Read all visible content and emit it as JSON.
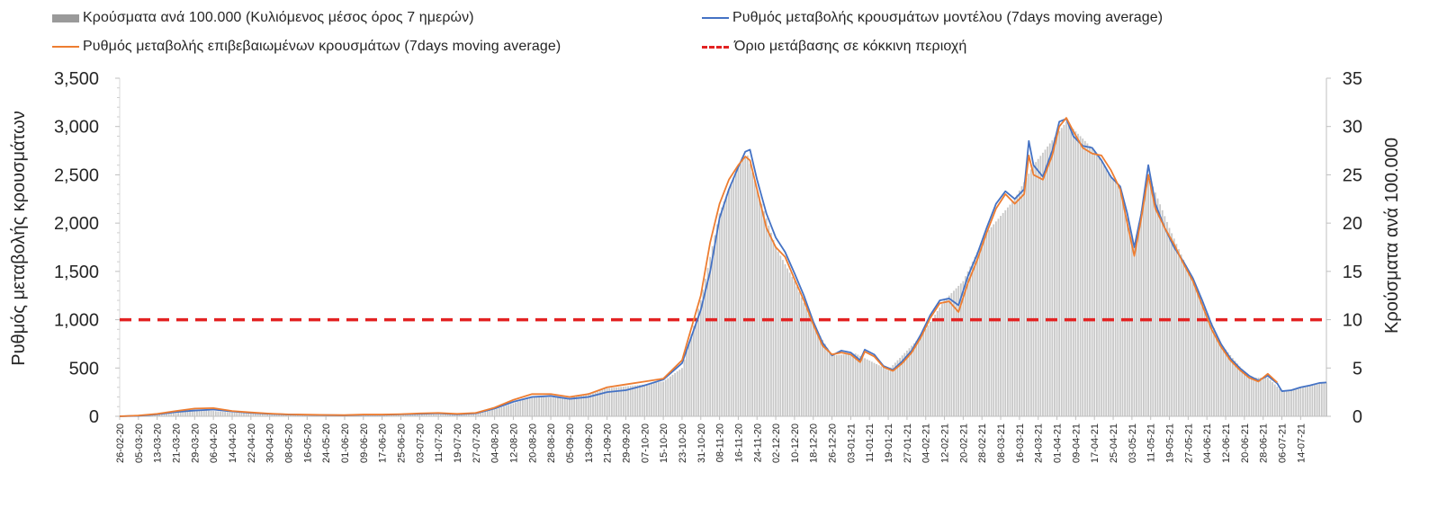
{
  "chart_data": {
    "type": "bar+line",
    "title": "",
    "ylabel_left": "Ρυθμός μεταβολής κρουσμάτων",
    "ylabel_right": "Κρούσματα ανά 100.000",
    "ylim_left": [
      0,
      3500
    ],
    "ylim_right": [
      0,
      35
    ],
    "yticks_left": [
      "0",
      "500",
      "1,000",
      "1,500",
      "2,000",
      "2,500",
      "3,000",
      "3,500"
    ],
    "yticks_right": [
      "0",
      "5",
      "10",
      "15",
      "20",
      "25",
      "30",
      "35"
    ],
    "x_range": [
      "2020-02-26",
      "2021-07-25"
    ],
    "x_tick_labels": [
      "26-02-20",
      "05-03-20",
      "13-03-20",
      "21-03-20",
      "29-03-20",
      "06-04-20",
      "14-04-20",
      "22-04-20",
      "30-04-20",
      "08-05-20",
      "16-05-20",
      "24-05-20",
      "01-06-20",
      "09-06-20",
      "17-06-20",
      "25-06-20",
      "03-07-20",
      "11-07-20",
      "19-07-20",
      "27-07-20",
      "04-08-20",
      "12-08-20",
      "20-08-20",
      "28-08-20",
      "05-09-20",
      "13-09-20",
      "21-09-20",
      "29-09-20",
      "07-10-20",
      "15-10-20",
      "23-10-20",
      "31-10-20",
      "08-11-20",
      "16-11-20",
      "24-11-20",
      "02-12-20",
      "10-12-20",
      "18-12-20",
      "26-12-20",
      "03-01-21",
      "11-01-21",
      "19-01-21",
      "27-01-21",
      "04-02-21",
      "12-02-21",
      "20-02-21",
      "28-02-21",
      "08-03-21",
      "16-03-21",
      "24-03-21",
      "01-04-21",
      "09-04-21",
      "17-04-21",
      "25-04-21",
      "03-05-21",
      "11-05-21",
      "19-05-21",
      "27-05-21",
      "04-06-21",
      "12-06-21",
      "20-06-21",
      "28-06-21",
      "06-07-21",
      "14-07-21"
    ],
    "legend": [
      {
        "label": "Κρούσματα ανά 100.000 (Κυλιόμενος μέσος όρος 7 ημερών)",
        "kind": "bar",
        "color": "#9a9a9a"
      },
      {
        "label": "Ρυθμός μεταβολής κρουσμάτων μοντέλου (7days moving average)",
        "kind": "line",
        "color": "#4472c4"
      },
      {
        "label": "Ρυθμός μεταβολής επιβεβαιωμένων κρουσμάτων (7days moving average)",
        "kind": "line",
        "color": "#ed7d31"
      },
      {
        "label": "Όριο μετάβασης σε κόκκινη περιοχή",
        "kind": "dashed",
        "color": "#e32222"
      }
    ],
    "threshold": {
      "y": 1000,
      "color": "#e32222"
    },
    "series": [
      {
        "name": "Ρυθμός μεταβολής κρουσμάτων μοντέλου (7days moving average)",
        "color": "#4472c4",
        "axis": "left",
        "points": [
          [
            "2020-02-26",
            0
          ],
          [
            "2020-03-05",
            5
          ],
          [
            "2020-03-13",
            20
          ],
          [
            "2020-03-21",
            45
          ],
          [
            "2020-03-29",
            60
          ],
          [
            "2020-04-06",
            70
          ],
          [
            "2020-04-14",
            50
          ],
          [
            "2020-04-22",
            35
          ],
          [
            "2020-04-30",
            25
          ],
          [
            "2020-05-08",
            18
          ],
          [
            "2020-05-16",
            15
          ],
          [
            "2020-05-24",
            12
          ],
          [
            "2020-06-01",
            10
          ],
          [
            "2020-06-09",
            15
          ],
          [
            "2020-06-17",
            15
          ],
          [
            "2020-06-25",
            20
          ],
          [
            "2020-07-03",
            25
          ],
          [
            "2020-07-11",
            30
          ],
          [
            "2020-07-19",
            20
          ],
          [
            "2020-07-27",
            30
          ],
          [
            "2020-08-04",
            80
          ],
          [
            "2020-08-12",
            150
          ],
          [
            "2020-08-20",
            200
          ],
          [
            "2020-08-28",
            210
          ],
          [
            "2020-09-05",
            180
          ],
          [
            "2020-09-13",
            200
          ],
          [
            "2020-09-21",
            250
          ],
          [
            "2020-09-29",
            270
          ],
          [
            "2020-10-07",
            320
          ],
          [
            "2020-10-15",
            380
          ],
          [
            "2020-10-23",
            550
          ],
          [
            "2020-10-31",
            1100
          ],
          [
            "2020-11-04",
            1500
          ],
          [
            "2020-11-08",
            2050
          ],
          [
            "2020-11-12",
            2350
          ],
          [
            "2020-11-16",
            2580
          ],
          [
            "2020-11-19",
            2740
          ],
          [
            "2020-11-21",
            2760
          ],
          [
            "2020-11-24",
            2450
          ],
          [
            "2020-11-28",
            2100
          ],
          [
            "2020-12-02",
            1850
          ],
          [
            "2020-12-06",
            1700
          ],
          [
            "2020-12-10",
            1480
          ],
          [
            "2020-12-14",
            1250
          ],
          [
            "2020-12-18",
            980
          ],
          [
            "2020-12-22",
            760
          ],
          [
            "2020-12-26",
            630
          ],
          [
            "2020-12-30",
            680
          ],
          [
            "2021-01-03",
            660
          ],
          [
            "2021-01-07",
            580
          ],
          [
            "2021-01-09",
            690
          ],
          [
            "2021-01-13",
            640
          ],
          [
            "2021-01-17",
            520
          ],
          [
            "2021-01-21",
            480
          ],
          [
            "2021-01-25",
            570
          ],
          [
            "2021-01-29",
            680
          ],
          [
            "2021-02-02",
            850
          ],
          [
            "2021-02-06",
            1050
          ],
          [
            "2021-02-10",
            1200
          ],
          [
            "2021-02-14",
            1220
          ],
          [
            "2021-02-18",
            1150
          ],
          [
            "2021-02-22",
            1450
          ],
          [
            "2021-02-26",
            1680
          ],
          [
            "2021-03-02",
            1950
          ],
          [
            "2021-03-06",
            2200
          ],
          [
            "2021-03-10",
            2330
          ],
          [
            "2021-03-14",
            2250
          ],
          [
            "2021-03-18",
            2350
          ],
          [
            "2021-03-20",
            2850
          ],
          [
            "2021-03-22",
            2600
          ],
          [
            "2021-03-26",
            2480
          ],
          [
            "2021-03-30",
            2750
          ],
          [
            "2021-04-02",
            3050
          ],
          [
            "2021-04-05",
            3080
          ],
          [
            "2021-04-08",
            2900
          ],
          [
            "2021-04-12",
            2800
          ],
          [
            "2021-04-16",
            2780
          ],
          [
            "2021-04-20",
            2650
          ],
          [
            "2021-04-24",
            2480
          ],
          [
            "2021-04-28",
            2380
          ],
          [
            "2021-05-01",
            2100
          ],
          [
            "2021-05-04",
            1750
          ],
          [
            "2021-05-07",
            2100
          ],
          [
            "2021-05-10",
            2600
          ],
          [
            "2021-05-13",
            2200
          ],
          [
            "2021-05-17",
            1950
          ],
          [
            "2021-05-21",
            1750
          ],
          [
            "2021-05-25",
            1600
          ],
          [
            "2021-05-29",
            1430
          ],
          [
            "2021-06-02",
            1200
          ],
          [
            "2021-06-06",
            950
          ],
          [
            "2021-06-10",
            750
          ],
          [
            "2021-06-14",
            600
          ],
          [
            "2021-06-18",
            500
          ],
          [
            "2021-06-22",
            420
          ],
          [
            "2021-06-26",
            370
          ],
          [
            "2021-06-30",
            420
          ],
          [
            "2021-07-04",
            340
          ],
          [
            "2021-07-06",
            260
          ],
          [
            "2021-07-10",
            270
          ],
          [
            "2021-07-14",
            300
          ],
          [
            "2021-07-18",
            320
          ],
          [
            "2021-07-22",
            345
          ],
          [
            "2021-07-25",
            350
          ]
        ]
      },
      {
        "name": "Ρυθμός μεταβολής επιβεβαιωμένων κρουσμάτων (7days moving average)",
        "color": "#ed7d31",
        "axis": "left",
        "points": [
          [
            "2020-02-26",
            0
          ],
          [
            "2020-03-05",
            8
          ],
          [
            "2020-03-13",
            25
          ],
          [
            "2020-03-21",
            55
          ],
          [
            "2020-03-29",
            80
          ],
          [
            "2020-04-06",
            85
          ],
          [
            "2020-04-14",
            55
          ],
          [
            "2020-04-22",
            40
          ],
          [
            "2020-04-30",
            28
          ],
          [
            "2020-05-08",
            20
          ],
          [
            "2020-05-16",
            17
          ],
          [
            "2020-05-24",
            14
          ],
          [
            "2020-06-01",
            12
          ],
          [
            "2020-06-09",
            18
          ],
          [
            "2020-06-17",
            18
          ],
          [
            "2020-06-25",
            22
          ],
          [
            "2020-07-03",
            30
          ],
          [
            "2020-07-11",
            35
          ],
          [
            "2020-07-19",
            25
          ],
          [
            "2020-07-27",
            35
          ],
          [
            "2020-08-04",
            90
          ],
          [
            "2020-08-12",
            170
          ],
          [
            "2020-08-20",
            230
          ],
          [
            "2020-08-28",
            230
          ],
          [
            "2020-09-05",
            200
          ],
          [
            "2020-09-13",
            230
          ],
          [
            "2020-09-21",
            300
          ],
          [
            "2020-09-29",
            330
          ],
          [
            "2020-10-07",
            360
          ],
          [
            "2020-10-15",
            390
          ],
          [
            "2020-10-23",
            580
          ],
          [
            "2020-10-31",
            1250
          ],
          [
            "2020-11-04",
            1800
          ],
          [
            "2020-11-08",
            2200
          ],
          [
            "2020-11-12",
            2450
          ],
          [
            "2020-11-16",
            2600
          ],
          [
            "2020-11-19",
            2690
          ],
          [
            "2020-11-21",
            2650
          ],
          [
            "2020-11-24",
            2350
          ],
          [
            "2020-11-28",
            1950
          ],
          [
            "2020-12-02",
            1750
          ],
          [
            "2020-12-06",
            1650
          ],
          [
            "2020-12-10",
            1420
          ],
          [
            "2020-12-14",
            1200
          ],
          [
            "2020-12-18",
            950
          ],
          [
            "2020-12-22",
            730
          ],
          [
            "2020-12-26",
            640
          ],
          [
            "2020-12-30",
            660
          ],
          [
            "2021-01-03",
            640
          ],
          [
            "2021-01-07",
            560
          ],
          [
            "2021-01-09",
            670
          ],
          [
            "2021-01-13",
            620
          ],
          [
            "2021-01-17",
            510
          ],
          [
            "2021-01-21",
            470
          ],
          [
            "2021-01-25",
            550
          ],
          [
            "2021-01-29",
            660
          ],
          [
            "2021-02-02",
            820
          ],
          [
            "2021-02-06",
            1020
          ],
          [
            "2021-02-10",
            1170
          ],
          [
            "2021-02-14",
            1190
          ],
          [
            "2021-02-18",
            1080
          ],
          [
            "2021-02-22",
            1380
          ],
          [
            "2021-02-26",
            1620
          ],
          [
            "2021-03-02",
            1900
          ],
          [
            "2021-03-06",
            2150
          ],
          [
            "2021-03-10",
            2300
          ],
          [
            "2021-03-14",
            2200
          ],
          [
            "2021-03-18",
            2300
          ],
          [
            "2021-03-20",
            2700
          ],
          [
            "2021-03-22",
            2500
          ],
          [
            "2021-03-26",
            2450
          ],
          [
            "2021-03-30",
            2700
          ],
          [
            "2021-04-02",
            3000
          ],
          [
            "2021-04-05",
            3090
          ],
          [
            "2021-04-08",
            2950
          ],
          [
            "2021-04-12",
            2780
          ],
          [
            "2021-04-16",
            2720
          ],
          [
            "2021-04-20",
            2700
          ],
          [
            "2021-04-24",
            2550
          ],
          [
            "2021-04-28",
            2350
          ],
          [
            "2021-05-01",
            2000
          ],
          [
            "2021-05-04",
            1660
          ],
          [
            "2021-05-07",
            2050
          ],
          [
            "2021-05-10",
            2500
          ],
          [
            "2021-05-13",
            2150
          ],
          [
            "2021-05-17",
            1950
          ],
          [
            "2021-05-21",
            1780
          ],
          [
            "2021-05-25",
            1580
          ],
          [
            "2021-05-29",
            1400
          ],
          [
            "2021-06-02",
            1150
          ],
          [
            "2021-06-06",
            900
          ],
          [
            "2021-06-10",
            720
          ],
          [
            "2021-06-14",
            580
          ],
          [
            "2021-06-18",
            480
          ],
          [
            "2021-06-22",
            400
          ],
          [
            "2021-06-26",
            360
          ],
          [
            "2021-06-30",
            440
          ],
          [
            "2021-07-04",
            350
          ]
        ]
      },
      {
        "name": "Κρούσματα ανά 100.000 (Κυλιόμενος μέσος όρος 7 ημερών)",
        "color": "#9a9a9a",
        "axis": "right",
        "type": "bar",
        "points": [
          [
            "2020-02-26",
            0
          ],
          [
            "2020-03-13",
            0.3
          ],
          [
            "2020-03-29",
            0.7
          ],
          [
            "2020-04-14",
            0.4
          ],
          [
            "2020-05-01",
            0.2
          ],
          [
            "2020-06-01",
            0.1
          ],
          [
            "2020-07-01",
            0.2
          ],
          [
            "2020-07-19",
            0.2
          ],
          [
            "2020-08-04",
            0.7
          ],
          [
            "2020-08-20",
            2.0
          ],
          [
            "2020-09-05",
            1.9
          ],
          [
            "2020-09-21",
            2.9
          ],
          [
            "2020-10-07",
            3.3
          ],
          [
            "2020-10-15",
            3.6
          ],
          [
            "2020-10-23",
            5.0
          ],
          [
            "2020-10-31",
            12.0
          ],
          [
            "2020-11-08",
            21.0
          ],
          [
            "2020-11-16",
            26.0
          ],
          [
            "2020-11-20",
            27.0
          ],
          [
            "2020-11-24",
            23.5
          ],
          [
            "2020-12-02",
            17.5
          ],
          [
            "2020-12-10",
            14.0
          ],
          [
            "2020-12-18",
            9.5
          ],
          [
            "2020-12-26",
            6.3
          ],
          [
            "2021-01-05",
            6.5
          ],
          [
            "2021-01-19",
            4.8
          ],
          [
            "2021-02-02",
            8.3
          ],
          [
            "2021-02-12",
            12.0
          ],
          [
            "2021-02-20",
            14.0
          ],
          [
            "2021-03-02",
            19.0
          ],
          [
            "2021-03-14",
            22.5
          ],
          [
            "2021-03-22",
            26.0
          ],
          [
            "2021-04-05",
            30.5
          ],
          [
            "2021-04-17",
            27.5
          ],
          [
            "2021-04-28",
            23.5
          ],
          [
            "2021-05-04",
            17.5
          ],
          [
            "2021-05-10",
            25.0
          ],
          [
            "2021-05-19",
            19.5
          ],
          [
            "2021-05-29",
            14.0
          ],
          [
            "2021-06-10",
            7.5
          ],
          [
            "2021-06-22",
            4.0
          ],
          [
            "2021-06-30",
            4.0
          ],
          [
            "2021-07-06",
            2.6
          ],
          [
            "2021-07-25",
            3.5
          ]
        ]
      }
    ]
  }
}
